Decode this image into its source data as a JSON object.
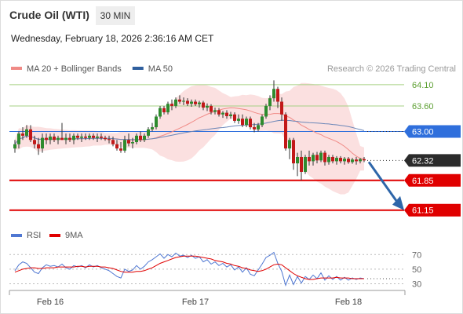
{
  "header": {
    "title": "Crude Oil (WTI)",
    "timeframe": "30 MIN",
    "datetime": "Wednesday, February 18, 2026 2:36:16 AM CET"
  },
  "legend": {
    "items": [
      {
        "label": "MA 20 + Bollinger Bands",
        "color": "#f08a86"
      },
      {
        "label": "MA 50",
        "color": "#2f5f9e"
      }
    ],
    "credit": "Research © 2026 Trading Central"
  },
  "colors": {
    "resistance_line": "#a6d185",
    "pivot_line": "#2f6fdc",
    "support_line": "#e00000",
    "candle_up": "#2e8b2e",
    "candle_down": "#c21818",
    "bollinger_fill": "#fbe0e0",
    "ma20": "#f08a86",
    "ma50": "#6b86b8",
    "arrow": "#2e66a9",
    "rsi": "#4f77d2",
    "rsi_ma": "#e00000"
  },
  "chart_data": [
    {
      "type": "candlestick",
      "y_range": [
        60.85,
        64.3
      ],
      "levels": [
        {
          "value": 64.1,
          "label": "64.10",
          "kind": "resistance"
        },
        {
          "value": 63.6,
          "label": "63.60",
          "kind": "resistance"
        },
        {
          "value": 63.0,
          "label": "63.00",
          "kind": "pivot"
        },
        {
          "value": 62.32,
          "label": "62.32",
          "kind": "last"
        },
        {
          "value": 61.85,
          "label": "61.85",
          "kind": "support"
        },
        {
          "value": 61.15,
          "label": "61.15",
          "kind": "support"
        }
      ],
      "x_labels": [
        "Feb 16",
        "Feb 17",
        "Feb 18"
      ],
      "x_label_bar_index": [
        9,
        46,
        85
      ],
      "ohlc": [
        [
          62.6,
          62.8,
          62.5,
          62.7
        ],
        [
          62.7,
          63.0,
          62.6,
          62.95
        ],
        [
          62.95,
          63.1,
          62.8,
          62.9
        ],
        [
          62.9,
          63.15,
          62.85,
          63.05
        ],
        [
          63.05,
          63.15,
          62.75,
          62.8
        ],
        [
          62.8,
          62.9,
          62.6,
          62.7
        ],
        [
          62.7,
          62.85,
          62.45,
          62.6
        ],
        [
          62.6,
          62.95,
          62.5,
          62.85
        ],
        [
          62.85,
          62.95,
          62.7,
          62.8
        ],
        [
          62.8,
          62.95,
          62.7,
          62.88
        ],
        [
          62.88,
          62.95,
          62.75,
          62.8
        ],
        [
          62.8,
          62.9,
          62.7,
          62.85
        ],
        [
          62.85,
          63.2,
          62.8,
          62.8
        ],
        [
          62.8,
          62.95,
          62.7,
          62.85
        ],
        [
          62.85,
          62.95,
          62.75,
          62.8
        ],
        [
          62.8,
          62.95,
          62.7,
          62.9
        ],
        [
          62.9,
          62.95,
          62.8,
          62.85
        ],
        [
          62.85,
          62.95,
          62.75,
          62.88
        ],
        [
          62.88,
          62.95,
          62.8,
          62.85
        ],
        [
          62.85,
          62.95,
          62.8,
          62.9
        ],
        [
          62.9,
          62.95,
          62.8,
          62.85
        ],
        [
          62.85,
          62.95,
          62.75,
          62.88
        ],
        [
          62.88,
          62.95,
          62.8,
          62.85
        ],
        [
          62.85,
          62.9,
          62.78,
          62.82
        ],
        [
          62.82,
          62.9,
          62.72,
          62.8
        ],
        [
          62.8,
          62.88,
          62.65,
          62.7
        ],
        [
          62.7,
          62.8,
          62.55,
          62.6
        ],
        [
          62.6,
          62.75,
          62.5,
          62.55
        ],
        [
          62.55,
          62.9,
          62.5,
          62.8
        ],
        [
          62.8,
          62.95,
          62.65,
          62.72
        ],
        [
          62.72,
          62.85,
          62.6,
          62.75
        ],
        [
          62.75,
          62.95,
          62.7,
          62.9
        ],
        [
          62.9,
          63.0,
          62.75,
          62.8
        ],
        [
          62.8,
          62.95,
          62.75,
          62.9
        ],
        [
          62.9,
          63.1,
          62.85,
          63.05
        ],
        [
          63.05,
          63.2,
          63.0,
          63.1
        ],
        [
          63.1,
          63.4,
          63.05,
          63.35
        ],
        [
          63.35,
          63.6,
          63.3,
          63.55
        ],
        [
          63.55,
          63.6,
          63.4,
          63.45
        ],
        [
          63.45,
          63.7,
          63.4,
          63.65
        ],
        [
          63.65,
          63.75,
          63.5,
          63.6
        ],
        [
          63.6,
          63.8,
          63.55,
          63.75
        ],
        [
          63.75,
          63.85,
          63.65,
          63.7
        ],
        [
          63.7,
          63.8,
          63.62,
          63.72
        ],
        [
          63.72,
          63.78,
          63.6,
          63.65
        ],
        [
          63.65,
          63.75,
          63.58,
          63.7
        ],
        [
          63.7,
          63.75,
          63.6,
          63.64
        ],
        [
          63.64,
          63.72,
          63.56,
          63.68
        ],
        [
          63.68,
          63.72,
          63.5,
          63.56
        ],
        [
          63.56,
          63.66,
          63.48,
          63.6
        ],
        [
          63.6,
          63.64,
          63.4,
          63.46
        ],
        [
          63.46,
          63.56,
          63.4,
          63.5
        ],
        [
          63.5,
          63.55,
          63.35,
          63.4
        ],
        [
          63.4,
          63.48,
          63.32,
          63.44
        ],
        [
          63.44,
          63.5,
          63.3,
          63.36
        ],
        [
          63.36,
          63.46,
          63.3,
          63.4
        ],
        [
          63.4,
          63.45,
          63.2,
          63.25
        ],
        [
          63.25,
          63.4,
          63.18,
          63.3
        ],
        [
          63.3,
          63.4,
          63.1,
          63.15
        ],
        [
          63.15,
          63.35,
          63.1,
          63.3
        ],
        [
          63.3,
          63.35,
          63.05,
          63.1
        ],
        [
          63.1,
          63.2,
          62.98,
          63.05
        ],
        [
          63.05,
          63.2,
          63.0,
          63.15
        ],
        [
          63.15,
          63.4,
          63.1,
          63.35
        ],
        [
          63.35,
          63.65,
          63.3,
          63.6
        ],
        [
          63.6,
          63.85,
          63.5,
          63.78
        ],
        [
          63.78,
          64.2,
          63.7,
          64.0
        ],
        [
          64.0,
          64.05,
          63.55,
          63.7
        ],
        [
          63.7,
          63.8,
          63.25,
          63.4
        ],
        [
          63.4,
          63.45,
          62.55,
          62.6
        ],
        [
          62.6,
          62.85,
          62.35,
          62.8
        ],
        [
          62.8,
          62.85,
          62.1,
          62.25
        ],
        [
          62.25,
          62.5,
          61.95,
          62.4
        ],
        [
          62.4,
          62.55,
          61.85,
          62.05
        ],
        [
          62.05,
          62.45,
          62.0,
          62.4
        ],
        [
          62.4,
          62.55,
          62.2,
          62.3
        ],
        [
          62.3,
          62.5,
          62.2,
          62.45
        ],
        [
          62.45,
          62.52,
          62.25,
          62.32
        ],
        [
          62.32,
          62.55,
          62.28,
          62.5
        ],
        [
          62.5,
          62.55,
          62.2,
          62.28
        ],
        [
          62.28,
          62.45,
          62.22,
          62.4
        ],
        [
          62.4,
          62.45,
          62.25,
          62.3
        ],
        [
          62.3,
          62.42,
          62.22,
          62.38
        ],
        [
          62.38,
          62.42,
          62.25,
          62.3
        ],
        [
          62.3,
          62.4,
          62.22,
          62.36
        ],
        [
          62.36,
          62.4,
          62.24,
          62.28
        ],
        [
          62.28,
          62.38,
          62.24,
          62.34
        ],
        [
          62.34,
          62.4,
          62.22,
          62.3
        ],
        [
          62.3,
          62.38,
          62.25,
          62.35
        ],
        [
          62.35,
          62.4,
          62.28,
          62.32
        ]
      ],
      "projection": {
        "from": 62.32,
        "to": 61.15
      }
    },
    {
      "type": "line",
      "legend": [
        "RSI",
        "9MA"
      ],
      "y_ticks": [
        70,
        50,
        30
      ],
      "y_range": [
        22,
        80
      ],
      "series": [
        {
          "name": "RSI",
          "values": [
            48,
            56,
            60,
            58,
            52,
            46,
            44,
            52,
            56,
            54,
            55,
            53,
            57,
            52,
            50,
            55,
            53,
            55,
            52,
            56,
            53,
            55,
            52,
            50,
            48,
            44,
            40,
            38,
            50,
            47,
            49,
            55,
            50,
            54,
            60,
            63,
            67,
            71,
            65,
            70,
            67,
            72,
            68,
            69,
            66,
            69,
            65,
            67,
            60,
            63,
            57,
            60,
            55,
            58,
            53,
            56,
            49,
            53,
            46,
            52,
            43,
            41,
            49,
            57,
            66,
            69,
            73,
            58,
            47,
            28,
            42,
            29,
            40,
            31,
            40,
            36,
            42,
            37,
            45,
            35,
            41,
            36,
            40,
            35,
            39,
            35,
            38,
            36,
            38,
            37
          ]
        },
        {
          "name": "9MA",
          "values": [
            46,
            48,
            50,
            51,
            52,
            52,
            51,
            51,
            52,
            52,
            52,
            53,
            53,
            53,
            53,
            53,
            54,
            54,
            53,
            54,
            54,
            54,
            53,
            53,
            52,
            51,
            49,
            47,
            46,
            46,
            46,
            47,
            47,
            48,
            50,
            52,
            55,
            58,
            60,
            62,
            64,
            66,
            67,
            68,
            68,
            68,
            68,
            67,
            66,
            65,
            64,
            62,
            61,
            60,
            58,
            57,
            55,
            54,
            52,
            51,
            49,
            48,
            47,
            48,
            50,
            53,
            56,
            57,
            56,
            52,
            48,
            44,
            41,
            39,
            37,
            36,
            36,
            37,
            38,
            38,
            38,
            38,
            39,
            38,
            38,
            38,
            37,
            37,
            37,
            37
          ]
        }
      ]
    }
  ]
}
